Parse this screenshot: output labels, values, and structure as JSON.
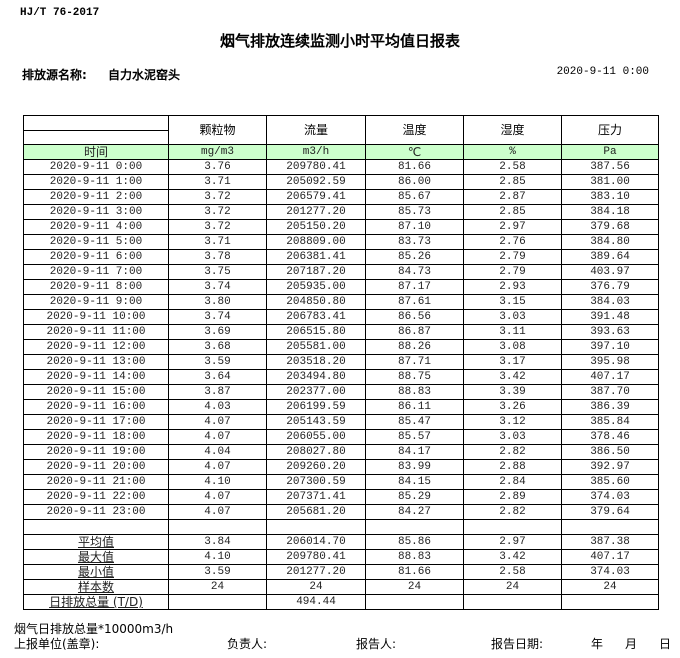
{
  "standard": "HJ/T  76-2017",
  "title": "烟气排放连续监测小时平均值日报表",
  "source_label": "排放源名称:",
  "source_name": "自力水泥窑头",
  "report_datetime": "2020-9-11  0:00",
  "columns": [
    "颗粒物",
    "流量",
    "温度",
    "湿度",
    "压力"
  ],
  "time_label": "时间",
  "units": [
    "mg/m3",
    "m3/h",
    "℃",
    "%",
    "Pa"
  ],
  "rows": [
    [
      "2020-9-11 0:00",
      "3.76",
      "209780.41",
      "81.66",
      "2.58",
      "387.56"
    ],
    [
      "2020-9-11 1:00",
      "3.71",
      "205092.59",
      "86.00",
      "2.85",
      "381.00"
    ],
    [
      "2020-9-11 2:00",
      "3.72",
      "206579.41",
      "85.67",
      "2.87",
      "383.10"
    ],
    [
      "2020-9-11 3:00",
      "3.72",
      "201277.20",
      "85.73",
      "2.85",
      "384.18"
    ],
    [
      "2020-9-11 4:00",
      "3.72",
      "205150.20",
      "87.10",
      "2.97",
      "379.68"
    ],
    [
      "2020-9-11 5:00",
      "3.71",
      "208809.00",
      "83.73",
      "2.76",
      "384.80"
    ],
    [
      "2020-9-11 6:00",
      "3.78",
      "206381.41",
      "85.26",
      "2.79",
      "389.64"
    ],
    [
      "2020-9-11 7:00",
      "3.75",
      "207187.20",
      "84.73",
      "2.79",
      "403.97"
    ],
    [
      "2020-9-11 8:00",
      "3.74",
      "205935.00",
      "87.17",
      "2.93",
      "376.79"
    ],
    [
      "2020-9-11 9:00",
      "3.80",
      "204850.80",
      "87.61",
      "3.15",
      "384.03"
    ],
    [
      "2020-9-11 10:00",
      "3.74",
      "206783.41",
      "86.56",
      "3.03",
      "391.48"
    ],
    [
      "2020-9-11 11:00",
      "3.69",
      "206515.80",
      "86.87",
      "3.11",
      "393.63"
    ],
    [
      "2020-9-11 12:00",
      "3.68",
      "205581.00",
      "88.26",
      "3.08",
      "397.10"
    ],
    [
      "2020-9-11 13:00",
      "3.59",
      "203518.20",
      "87.71",
      "3.17",
      "395.98"
    ],
    [
      "2020-9-11 14:00",
      "3.64",
      "203494.80",
      "88.75",
      "3.42",
      "407.17"
    ],
    [
      "2020-9-11 15:00",
      "3.87",
      "202377.00",
      "88.83",
      "3.39",
      "387.70"
    ],
    [
      "2020-9-11 16:00",
      "4.03",
      "206199.59",
      "86.11",
      "3.26",
      "386.39"
    ],
    [
      "2020-9-11 17:00",
      "4.07",
      "205143.59",
      "85.47",
      "3.12",
      "385.84"
    ],
    [
      "2020-9-11 18:00",
      "4.07",
      "206055.00",
      "85.57",
      "3.03",
      "378.46"
    ],
    [
      "2020-9-11 19:00",
      "4.04",
      "208027.80",
      "84.17",
      "2.82",
      "386.50"
    ],
    [
      "2020-9-11 20:00",
      "4.07",
      "209260.20",
      "83.99",
      "2.88",
      "392.97"
    ],
    [
      "2020-9-11 21:00",
      "4.10",
      "207300.59",
      "84.15",
      "2.84",
      "385.60"
    ],
    [
      "2020-9-11 22:00",
      "4.07",
      "207371.41",
      "85.29",
      "2.89",
      "374.03"
    ],
    [
      "2020-9-11 23:00",
      "4.07",
      "205681.20",
      "84.27",
      "2.82",
      "379.64"
    ]
  ],
  "stats": [
    [
      "平均值",
      "3.84",
      "206014.70",
      "85.86",
      "2.97",
      "387.38"
    ],
    [
      "最大值",
      "4.10",
      "209780.41",
      "88.83",
      "3.42",
      "407.17"
    ],
    [
      "最小值",
      "3.59",
      "201277.20",
      "81.66",
      "2.58",
      "374.03"
    ],
    [
      "样本数",
      "24",
      "24",
      "24",
      "24",
      "24"
    ],
    [
      "日排放总量 (T/D)",
      "",
      "494.44",
      "",
      "",
      ""
    ]
  ],
  "footer": {
    "note": "烟气日排放总量*10000m3/h",
    "unit_label": "上报单位(盖章):",
    "responsible_label": "负责人:",
    "reporter_label": "报告人:",
    "report_date_label": "报告日期:",
    "year": "年",
    "month": "月",
    "day": "日"
  },
  "colors": {
    "unit_row_bg": "#ccffcc"
  }
}
